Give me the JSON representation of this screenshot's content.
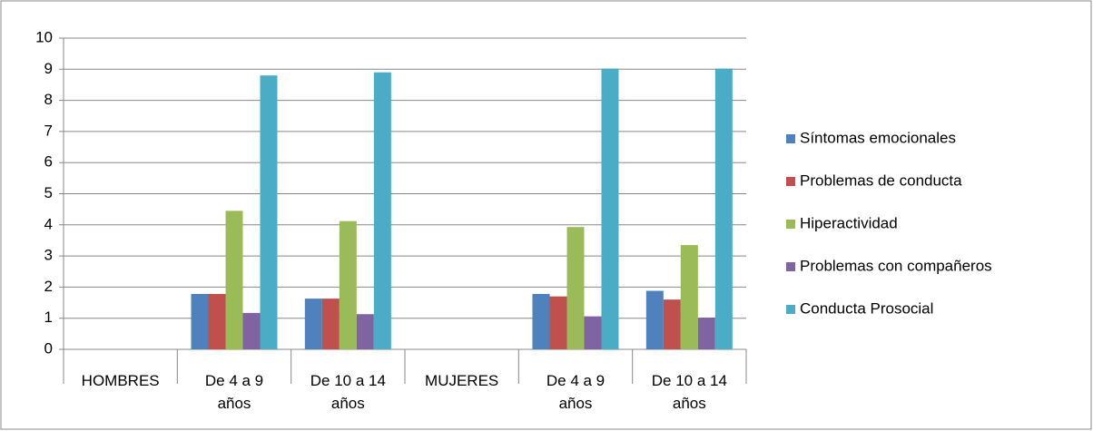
{
  "chart_data": {
    "type": "bar",
    "categories": [
      "HOMBRES",
      "De 4 a 9 años",
      "De 10 a 14 años",
      "MUJERES",
      "De 4 a 9 años",
      "De 10 a 14 años"
    ],
    "series": [
      {
        "name": "Síntomas emocionales",
        "color": "#4f81bd",
        "values": [
          null,
          1.78,
          1.63,
          null,
          1.78,
          1.88
        ]
      },
      {
        "name": "Problemas de conducta",
        "color": "#c0504d",
        "values": [
          null,
          1.78,
          1.63,
          null,
          1.7,
          1.6
        ]
      },
      {
        "name": "Hiperactividad",
        "color": "#9bbb59",
        "values": [
          null,
          4.45,
          4.12,
          null,
          3.93,
          3.35
        ]
      },
      {
        "name": "Problemas con compañeros",
        "color": "#8064a2",
        "values": [
          null,
          1.17,
          1.13,
          null,
          1.06,
          1.02
        ]
      },
      {
        "name": "Conducta Prosocial",
        "color": "#4bacc6",
        "values": [
          null,
          8.8,
          8.9,
          null,
          9.02,
          9.02
        ]
      }
    ],
    "ylim": [
      0,
      10
    ],
    "yticks": [
      0,
      1,
      2,
      3,
      4,
      5,
      6,
      7,
      8,
      9,
      10
    ],
    "grid": true,
    "legend": "right"
  }
}
